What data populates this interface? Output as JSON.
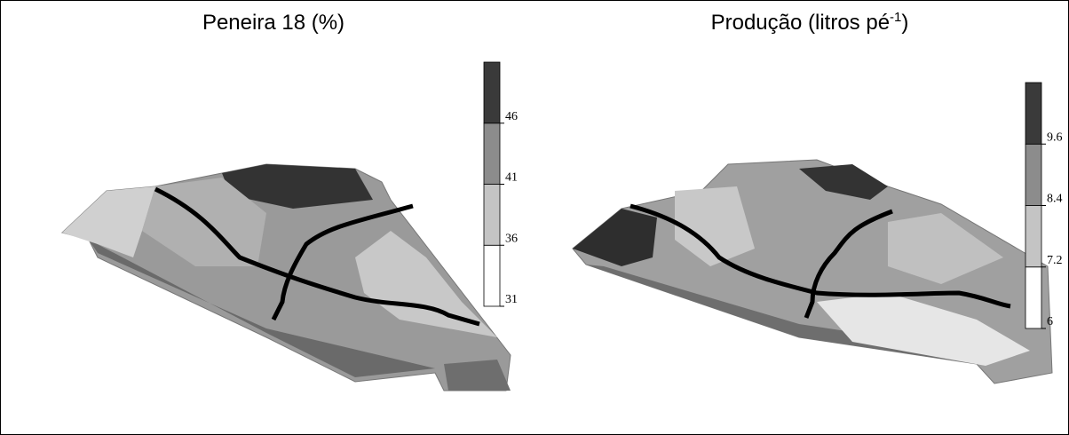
{
  "chart_data": [
    {
      "type": "surface-map",
      "title": "Peneira 18 (%)",
      "colorbar": {
        "zlim": [
          31,
          51
        ],
        "ticks": [
          31,
          36,
          41,
          46
        ],
        "colors": [
          "#ffffff",
          "#c4c4c4",
          "#8c8c8c",
          "#3a3a3a"
        ]
      }
    },
    {
      "type": "surface-map",
      "title": "Produção (litros pé",
      "title_superscript": "-1",
      "title_suffix": ")",
      "colorbar": {
        "zlim": [
          6,
          10.8
        ],
        "ticks": [
          6,
          7.2,
          8.4,
          9.6
        ],
        "colors": [
          "#ffffff",
          "#c4c4c4",
          "#8c8c8c",
          "#3a3a3a"
        ]
      }
    }
  ]
}
